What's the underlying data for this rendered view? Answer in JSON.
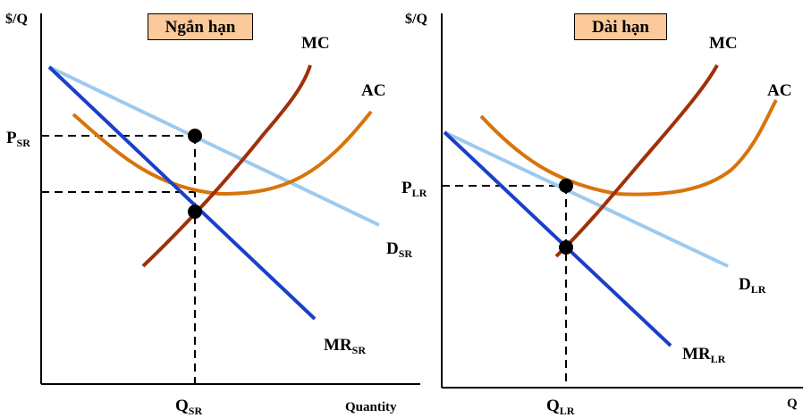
{
  "colors": {
    "mc": "#a0300a",
    "ac": "#d8740c",
    "demand": "#9ccaf0",
    "mr": "#1b3fc8",
    "title_bg": "#fbc99a"
  },
  "short_run": {
    "title": "Ngắn hạn",
    "y_axis_label": "$/Q",
    "x_axis_label": "Quantity",
    "mc_label": "MC",
    "ac_label": "AC",
    "demand_label": "D",
    "demand_sub": "SR",
    "mr_label": "MR",
    "mr_sub": "SR",
    "price_label": "P",
    "price_sub": "SR",
    "qty_label": "Q",
    "qty_sub": "SR"
  },
  "long_run": {
    "title": "Dài hạn",
    "y_axis_label": "$/Q",
    "x_axis_label": "Q",
    "mc_label": "MC",
    "ac_label": "AC",
    "demand_label": "D",
    "demand_sub": "LR",
    "mr_label": "MR",
    "mr_sub": "LR",
    "price_label": "P",
    "price_sub": "LR",
    "qty_label": "Q",
    "qty_sub": "LR"
  }
}
